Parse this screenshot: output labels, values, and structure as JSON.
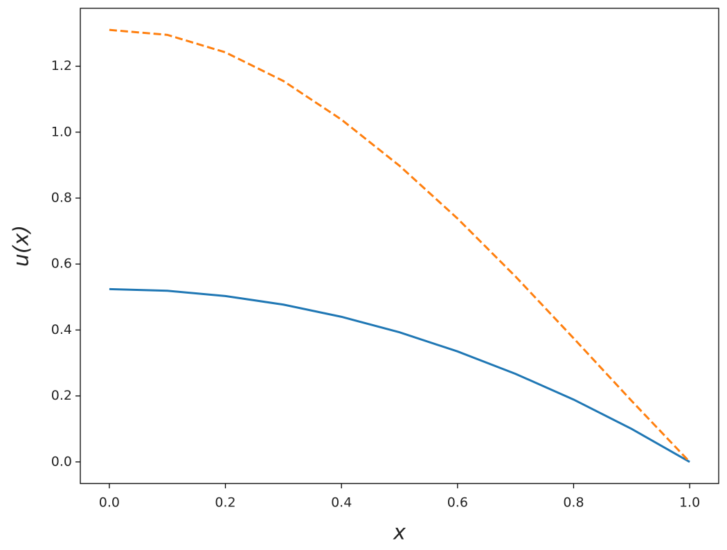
{
  "chart_data": {
    "type": "line",
    "x_label": "x",
    "y_label": "u(x)",
    "x": [
      0,
      0.1,
      0.2,
      0.3,
      0.4,
      0.5,
      0.6,
      0.7,
      0.8,
      0.9,
      1
    ],
    "series": [
      {
        "color": "#1f77b4",
        "dash": false,
        "values": [
          0.524,
          0.519,
          0.503,
          0.477,
          0.44,
          0.393,
          0.335,
          0.267,
          0.189,
          0.1,
          0
        ]
      },
      {
        "color": "#ff7f0e",
        "dash": true,
        "values": [
          1.31,
          1.295,
          1.242,
          1.155,
          1.038,
          0.898,
          0.738,
          0.562,
          0.375,
          0.185,
          0
        ]
      }
    ],
    "xlim": [
      -0.05,
      1.05
    ],
    "ylim": [
      -0.0655,
      1.3755
    ],
    "xticks": [
      {
        "value": 0,
        "label": "0.0"
      },
      0.2,
      0.4,
      0.6,
      0.8,
      {
        "value": 1,
        "label": "1.0"
      }
    ],
    "yticks": [
      {
        "value": 0,
        "label": "0.0"
      },
      0.2,
      0.4,
      0.6,
      0.8,
      {
        "value": 1,
        "label": "1.0"
      },
      1.2
    ],
    "grid": false
  }
}
